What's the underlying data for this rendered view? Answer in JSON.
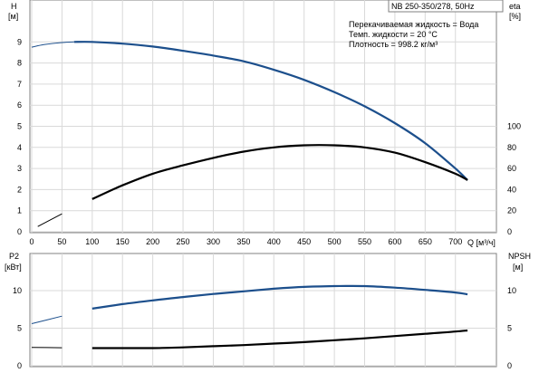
{
  "model": "NB 250-350/278, 50Hz",
  "conditions": [
    "Перекачиваемая жидкость = Вода",
    "Темп. жидкости = 20 °C",
    "Плотность = 998.2 кг/м³"
  ],
  "chart_data": [
    {
      "type": "line",
      "panel": "top",
      "x_axis": {
        "label": "Q [м³/ч]",
        "ticks": [
          0,
          50,
          100,
          150,
          200,
          250,
          300,
          350,
          400,
          450,
          500,
          550,
          600,
          650,
          700
        ],
        "range": [
          0,
          730
        ]
      },
      "y_left": {
        "label": "H",
        "unit": "[м]",
        "ticks": [
          0,
          1,
          2,
          3,
          4,
          5,
          6,
          7,
          8,
          9
        ],
        "range": [
          0,
          10
        ]
      },
      "y_right": {
        "label": "eta",
        "unit": "[%]",
        "ticks": [
          0,
          20,
          40,
          60,
          80,
          100
        ],
        "range": [
          0,
          100
        ]
      },
      "series": [
        {
          "name": "H",
          "axis": "left",
          "color": "#1c4f8c",
          "points": [
            [
              0,
              8.75
            ],
            [
              20,
              8.87
            ],
            [
              50,
              8.97
            ],
            [
              70,
              9.0
            ],
            [
              100,
              9.0
            ],
            [
              150,
              8.92
            ],
            [
              200,
              8.78
            ],
            [
              250,
              8.58
            ],
            [
              300,
              8.35
            ],
            [
              350,
              8.08
            ],
            [
              400,
              7.68
            ],
            [
              450,
              7.2
            ],
            [
              500,
              6.62
            ],
            [
              550,
              5.95
            ],
            [
              600,
              5.15
            ],
            [
              650,
              4.2
            ],
            [
              700,
              3.0
            ],
            [
              720,
              2.45
            ]
          ]
        },
        {
          "name": "eta",
          "axis": "right",
          "color": "#000000",
          "points": [
            [
              10,
              5
            ],
            [
              50,
              17
            ],
            [
              100,
              31
            ],
            [
              150,
              44
            ],
            [
              200,
              55
            ],
            [
              250,
              63
            ],
            [
              300,
              70
            ],
            [
              350,
              76
            ],
            [
              400,
              80
            ],
            [
              450,
              82
            ],
            [
              500,
              82
            ],
            [
              550,
              80
            ],
            [
              600,
              75
            ],
            [
              650,
              66
            ],
            [
              700,
              55
            ],
            [
              720,
              49
            ]
          ]
        }
      ]
    },
    {
      "type": "line",
      "panel": "bottom",
      "x_axis": {
        "range": [
          0,
          730
        ]
      },
      "y_left": {
        "label": "P2",
        "unit": "[кВт]",
        "ticks": [
          0,
          5,
          10
        ],
        "range": [
          0,
          13
        ]
      },
      "y_right": {
        "label": "NPSH",
        "unit": "[м]",
        "ticks": [
          0,
          5,
          10
        ],
        "range": [
          0,
          13
        ]
      },
      "series": [
        {
          "name": "P2",
          "axis": "left",
          "color": "#1c4f8c",
          "points": [
            [
              0,
              5.6
            ],
            [
              50,
              6.6
            ],
            [
              100,
              7.6
            ],
            [
              150,
              8.2
            ],
            [
              200,
              8.7
            ],
            [
              250,
              9.15
            ],
            [
              300,
              9.55
            ],
            [
              350,
              9.9
            ],
            [
              400,
              10.25
            ],
            [
              450,
              10.5
            ],
            [
              500,
              10.6
            ],
            [
              550,
              10.6
            ],
            [
              600,
              10.4
            ],
            [
              650,
              10.1
            ],
            [
              700,
              9.75
            ],
            [
              720,
              9.5
            ]
          ]
        },
        {
          "name": "NPSH",
          "axis": "right",
          "color": "#000000",
          "points": [
            [
              0,
              2.45
            ],
            [
              50,
              2.4
            ],
            [
              100,
              2.35
            ],
            [
              150,
              2.35
            ],
            [
              200,
              2.35
            ],
            [
              250,
              2.45
            ],
            [
              300,
              2.6
            ],
            [
              350,
              2.75
            ],
            [
              400,
              2.95
            ],
            [
              450,
              3.15
            ],
            [
              500,
              3.4
            ],
            [
              550,
              3.65
            ],
            [
              600,
              3.95
            ],
            [
              650,
              4.25
            ],
            [
              700,
              4.55
            ],
            [
              720,
              4.7
            ]
          ]
        }
      ]
    }
  ]
}
